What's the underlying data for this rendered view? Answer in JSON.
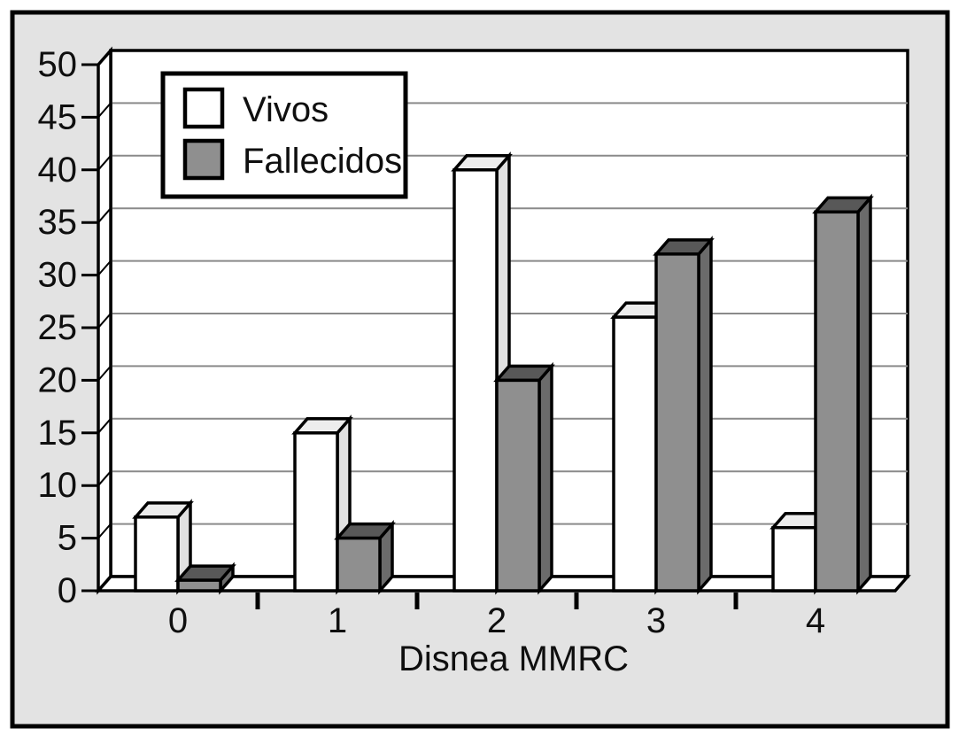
{
  "figure": {
    "panel_background": "#e3e3e3",
    "outer_background": "#ffffff",
    "frame_color": "#000000"
  },
  "chart_data": {
    "type": "bar",
    "style": "3d-column-grouped",
    "title": "",
    "xlabel": "Disnea MMRC",
    "ylabel": "",
    "categories": [
      "0",
      "1",
      "2",
      "3",
      "4"
    ],
    "series": [
      {
        "name": "Vivos",
        "values": [
          7,
          15,
          40,
          26,
          6
        ],
        "color": "#ffffff",
        "top_color": "#ededed",
        "side_color": "#e0e0e0"
      },
      {
        "name": "Fallecidos",
        "values": [
          1,
          5,
          20,
          32,
          36
        ],
        "color": "#8f8f8f",
        "top_color": "#585858",
        "side_color": "#6b6b6b"
      }
    ],
    "ylim": [
      0,
      50
    ],
    "y_ticks": [
      0,
      5,
      10,
      15,
      20,
      25,
      30,
      35,
      40,
      45,
      50
    ],
    "grid": true,
    "gridline_color": "#8a8a8a",
    "wall_color": "#ffffff",
    "outline_color": "#000000",
    "legend_position": "top-left"
  }
}
